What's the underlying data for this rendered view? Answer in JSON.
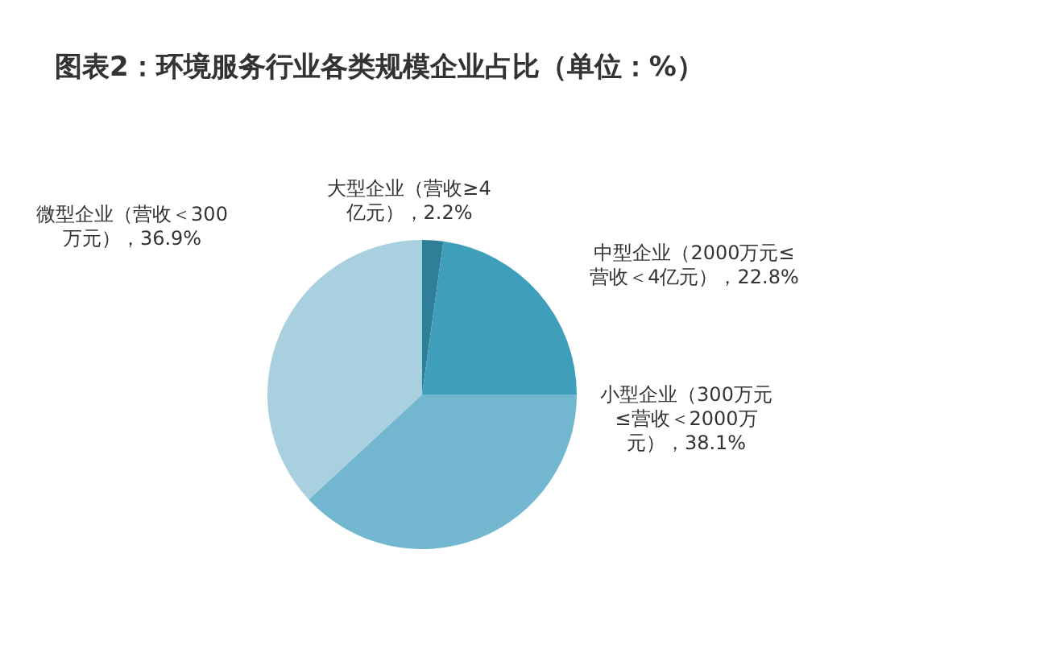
{
  "chart_data": {
    "type": "pie",
    "title": "图表2：环境服务行业各类规模企业占比（单位：%）",
    "categories": [
      "大型企业（营收≥4亿元）",
      "中型企业（2000万元≤营收＜4亿元）",
      "小型企业（300万元≤营收＜2000万元）",
      "微型企业（营收＜300万元）"
    ],
    "values": [
      2.2,
      22.8,
      38.1,
      36.9
    ],
    "value_labels": [
      "2.2%",
      "22.8%",
      "38.1%",
      "36.9%"
    ],
    "colors": [
      "#2f7f99",
      "#3f9fbb",
      "#72b6cf",
      "#a9d0de"
    ]
  }
}
